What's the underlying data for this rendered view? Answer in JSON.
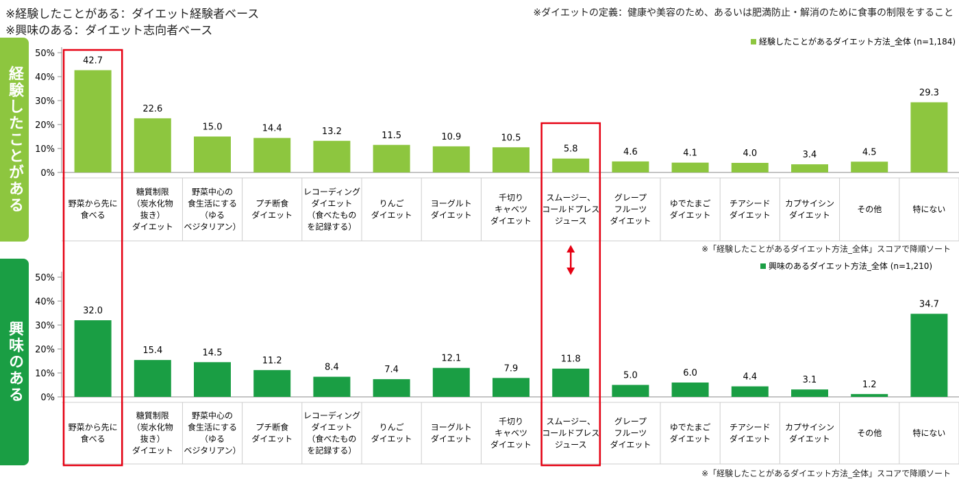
{
  "header": {
    "line1": "※経験したことがある：ダイエット経験者ベース",
    "line2": "※興味のある：ダイエット志向者ベース",
    "definition": "※ダイエットの定義：健康や美容のため、あるいは肥満防止・解消のために食事の制限をすること"
  },
  "colors": {
    "experience_bar": "#8dc63f",
    "interest_bar": "#1a9e44",
    "highlight": "#e60012",
    "grid_line": "#cccccc"
  },
  "sort_note": "※「経験したことがあるダイエット方法_全体」スコアで降順ソート",
  "chart_data": [
    {
      "type": "bar",
      "side_label": "経験したことがある",
      "legend": "経験したことがあるダイエット方法_全体 (n=1,184)",
      "y_ticks": [
        "0%",
        "10%",
        "20%",
        "30%",
        "40%",
        "50%"
      ],
      "ylim": [
        0,
        50
      ],
      "categories": [
        "野菜から先に\n食べる",
        "糖質制限\n（炭水化物\n抜き）\nダイエット",
        "野菜中心の\n食生活にする\n（ゆる\nベジタリアン）",
        "プチ断食\nダイエット",
        "レコーディング\nダイエット\n（食べたもの\nを記録する）",
        "りんご\nダイエット",
        "ヨーグルト\nダイエット",
        "千切り\nキャベツ\nダイエット",
        "スムージー、\nコールドプレス\nジュース",
        "グレープ\nフルーツ\nダイエット",
        "ゆでたまご\nダイエット",
        "チアシード\nダイエット",
        "カプサイシン\nダイエット",
        "その他",
        "特にない"
      ],
      "values": [
        42.7,
        22.6,
        15.0,
        14.4,
        13.2,
        11.5,
        10.9,
        10.5,
        5.8,
        4.6,
        4.1,
        4.0,
        3.4,
        4.5,
        29.3
      ],
      "value_labels": [
        "42.7",
        "22.6",
        "15.0",
        "14.4",
        "13.2",
        "11.5",
        "10.9",
        "10.5",
        "5.8",
        "4.6",
        "4.1",
        "4.0",
        "3.4",
        "4.5",
        "29.3"
      ]
    },
    {
      "type": "bar",
      "side_label": "興味のある",
      "legend": "興味のあるダイエット方法_全体 (n=1,210)",
      "y_ticks": [
        "0%",
        "10%",
        "20%",
        "30%",
        "40%",
        "50%"
      ],
      "ylim": [
        0,
        50
      ],
      "categories": [
        "野菜から先に\n食べる",
        "糖質制限\n（炭水化物\n抜き）\nダイエット",
        "野菜中心の\n食生活にする\n（ゆる\nベジタリアン）",
        "プチ断食\nダイエット",
        "レコーディング\nダイエット\n（食べたもの\nを記録する）",
        "りんご\nダイエット",
        "ヨーグルト\nダイエット",
        "千切り\nキャベツ\nダイエット",
        "スムージー、\nコールドプレス\nジュース",
        "グレープ\nフルーツ\nダイエット",
        "ゆでたまご\nダイエット",
        "チアシード\nダイエット",
        "カプサイシン\nダイエット",
        "その他",
        "特にない"
      ],
      "values": [
        32.0,
        15.4,
        14.5,
        11.2,
        8.4,
        7.4,
        12.1,
        7.9,
        11.8,
        5.0,
        6.0,
        4.4,
        3.1,
        1.2,
        34.7
      ],
      "value_labels": [
        "32.0",
        "15.4",
        "14.5",
        "11.2",
        "8.4",
        "7.4",
        "12.1",
        "7.9",
        "11.8",
        "5.0",
        "6.0",
        "4.4",
        "3.1",
        "1.2",
        "34.7"
      ]
    }
  ]
}
